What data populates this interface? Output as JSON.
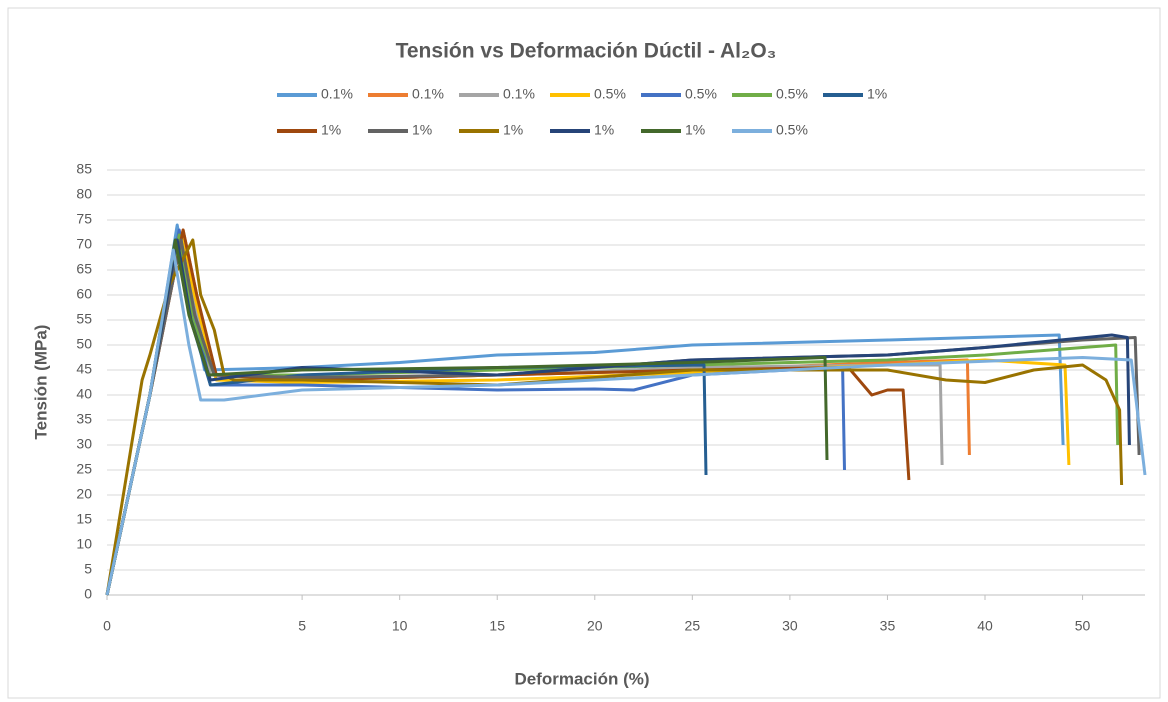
{
  "chart_data": {
    "type": "line",
    "title": "Tensión vs Deformación Dúctil - Al₂O₃",
    "x_label": "Deformación (%)",
    "y_label": "Tensión (MPa)",
    "xlim": [
      0,
      53.2
    ],
    "xticks": [
      0,
      {
        "value": 10,
        "label": "5"
      },
      {
        "value": 15,
        "label": "10"
      },
      {
        "value": 20,
        "label": "15"
      },
      {
        "value": 25,
        "label": "20"
      },
      {
        "value": 30,
        "label": "25"
      },
      {
        "value": 35,
        "label": "30"
      },
      {
        "value": 40,
        "label": "35"
      },
      {
        "value": 45,
        "label": "40"
      },
      50
    ],
    "ylim": [
      0,
      85
    ],
    "yticks": [
      0,
      5,
      10,
      15,
      20,
      25,
      30,
      35,
      40,
      45,
      50,
      55,
      60,
      65,
      70,
      75,
      80,
      85
    ],
    "grid": true,
    "legend": "top",
    "series": [
      {
        "name": "0.1%",
        "color": "#5b9bd5",
        "x": [
          0,
          2.2,
          3.6,
          4.2,
          5,
          10,
          15,
          20,
          25,
          30,
          40,
          48.8,
          49
        ],
        "values": [
          0,
          40,
          74,
          60,
          45,
          45.5,
          46.5,
          48,
          48.5,
          50,
          51,
          52,
          30
        ]
      },
      {
        "name": "0.1%",
        "color": "#ed7d31",
        "x": [
          0,
          2.2,
          3.9,
          4.6,
          5.5,
          10,
          20,
          30,
          40,
          44.1,
          44.2
        ],
        "values": [
          0,
          40,
          73,
          60,
          44,
          43,
          44,
          45,
          46.5,
          47,
          28
        ]
      },
      {
        "name": "0.1%",
        "color": "#a5a5a5",
        "x": [
          0,
          2.2,
          3.7,
          4.5,
          5.3,
          10,
          20,
          30,
          40,
          42.7,
          42.8
        ],
        "values": [
          0,
          40,
          72,
          58,
          44,
          43,
          44,
          45.5,
          46,
          46,
          26
        ]
      },
      {
        "name": "0.5%",
        "color": "#ffc000",
        "x": [
          0,
          2.2,
          3.8,
          4.6,
          5.6,
          10,
          20,
          30,
          40,
          45,
          49.1,
          49.3
        ],
        "values": [
          0,
          40,
          72,
          58,
          43,
          42.5,
          43,
          44.5,
          46,
          47,
          46,
          26
        ]
      },
      {
        "name": "0.5%",
        "color": "#4472c4",
        "x": [
          0,
          2.2,
          3.7,
          4.4,
          5.3,
          10,
          15,
          20,
          25,
          27,
          30,
          35,
          37.7,
          37.8
        ],
        "values": [
          0,
          40,
          73,
          58,
          42,
          42,
          41.5,
          41,
          41.2,
          41,
          44,
          45,
          45.5,
          25
        ]
      },
      {
        "name": "0.5%",
        "color": "#70ad47",
        "x": [
          0,
          2.2,
          3.7,
          4.4,
          5.5,
          10,
          20,
          30,
          40,
          45,
          51.7,
          51.8
        ],
        "values": [
          0,
          40,
          72,
          55,
          44,
          44,
          45,
          46,
          47,
          48,
          50,
          30
        ]
      },
      {
        "name": "1%",
        "color": "#255e91",
        "x": [
          0,
          2.2,
          3.5,
          4.3,
          5.3,
          10,
          20,
          30.6,
          30.7
        ],
        "values": [
          0,
          40,
          71,
          55,
          42,
          44,
          45.5,
          46,
          24
        ]
      },
      {
        "name": "1%",
        "color": "#9e480e",
        "x": [
          0,
          2.2,
          3.9,
          4.6,
          5.6,
          10,
          20,
          30,
          38,
          39.2,
          40,
          40.8,
          41.1
        ],
        "values": [
          0,
          40,
          73,
          60,
          44,
          43,
          44,
          45,
          45.5,
          40,
          41,
          41,
          23
        ]
      },
      {
        "name": "1%",
        "color": "#636363",
        "x": [
          0,
          2.2,
          3.8,
          4.5,
          5.5,
          10,
          20,
          30,
          40,
          50,
          52.7,
          52.9
        ],
        "values": [
          0,
          40,
          71,
          56,
          44,
          43.5,
          44,
          47,
          48,
          51,
          51.5,
          28
        ]
      },
      {
        "name": "1%",
        "color": "#997300",
        "x": [
          0,
          1.8,
          2.2,
          3.2,
          4.4,
          4.8,
          5.5,
          6,
          6.5,
          10,
          20,
          30,
          40,
          43,
          45,
          47.5,
          50,
          51.2,
          51.9,
          52
        ],
        "values": [
          0,
          43,
          48,
          62,
          71,
          60,
          53,
          44,
          43,
          43,
          42,
          45,
          45,
          43,
          42.5,
          45,
          46,
          43,
          37,
          22
        ]
      },
      {
        "name": "1%",
        "color": "#264478",
        "x": [
          0,
          2.2,
          3.6,
          4.3,
          5.3,
          10,
          20,
          30,
          40,
          45,
          51.5,
          52.3,
          52.4
        ],
        "values": [
          0,
          40,
          71,
          55,
          43,
          45.5,
          44,
          47,
          48,
          49.5,
          52,
          51.5,
          30
        ]
      },
      {
        "name": "1%",
        "color": "#43682b",
        "x": [
          0,
          2.2,
          3.5,
          4.2,
          5.2,
          10,
          20,
          30,
          36.8,
          36.9
        ],
        "values": [
          0,
          40,
          71,
          56,
          44,
          45,
          45.5,
          46.5,
          47.5,
          27
        ]
      },
      {
        "name": "0.5%",
        "color": "#7cafdd",
        "x": [
          0,
          2.2,
          3.4,
          4.2,
          4.8,
          6,
          10,
          20,
          30,
          40,
          50,
          52.5,
          53.2
        ],
        "values": [
          0,
          40,
          69,
          50,
          39,
          39,
          41,
          42,
          44,
          46,
          47.5,
          47,
          24
        ]
      }
    ]
  }
}
